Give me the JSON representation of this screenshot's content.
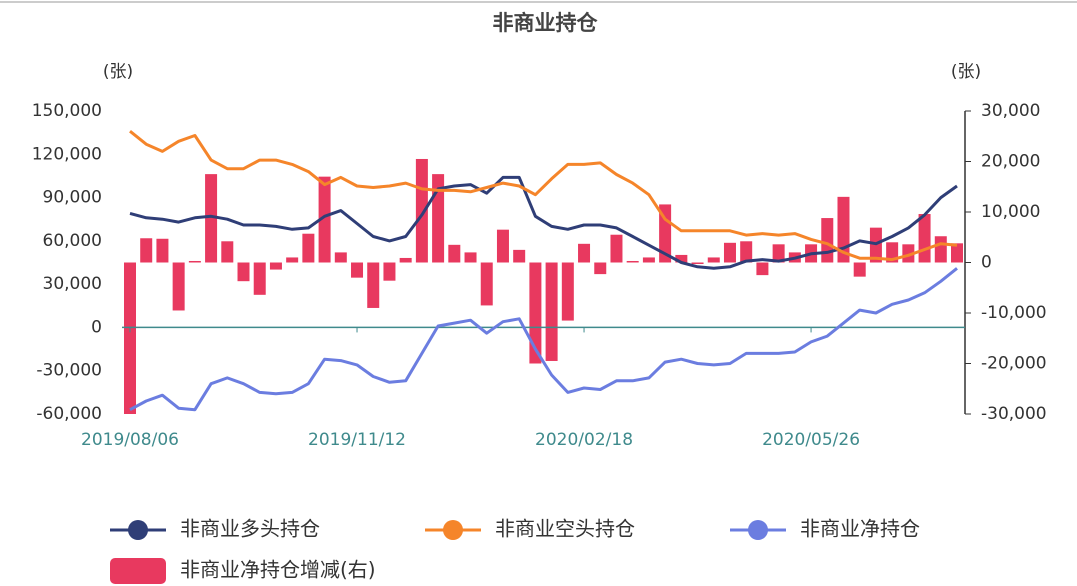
{
  "chart_data": {
    "type": "combo",
    "title": "非商业持仓",
    "y_unit": "(张)",
    "y2_unit": "(张)",
    "categories": [
      "2019/08/06",
      null,
      null,
      null,
      null,
      null,
      null,
      null,
      null,
      null,
      null,
      null,
      null,
      null,
      "2019/11/12",
      null,
      null,
      null,
      null,
      null,
      null,
      null,
      null,
      null,
      null,
      null,
      null,
      null,
      "2020/02/18",
      null,
      null,
      null,
      null,
      null,
      null,
      null,
      null,
      null,
      null,
      null,
      null,
      null,
      "2020/05/26",
      null,
      null,
      null,
      null,
      null,
      null,
      null,
      null,
      null
    ],
    "ylim": [
      -60000,
      150000
    ],
    "yticks": [
      {
        "value": -60000,
        "label": "-60,000"
      },
      {
        "value": -30000,
        "label": "-30,000"
      },
      0,
      {
        "value": 30000,
        "label": "30,000"
      },
      {
        "value": 60000,
        "label": "60,000"
      },
      {
        "value": 90000,
        "label": "90,000"
      },
      {
        "value": 120000,
        "label": "120,000"
      },
      {
        "value": 150000,
        "label": "150,000"
      }
    ],
    "y2lim": [
      -30000,
      30000
    ],
    "y2ticks": [
      {
        "value": -30000,
        "label": "-30,000"
      },
      {
        "value": -20000,
        "label": "-20,000"
      },
      {
        "value": -10000,
        "label": "-10,000"
      },
      0,
      {
        "value": 10000,
        "label": "10,000"
      },
      {
        "value": 20000,
        "label": "20,000"
      },
      {
        "value": 30000,
        "label": "30,000"
      }
    ],
    "legend": "bottom",
    "series": [
      {
        "name": "非商业多头持仓",
        "type": "line",
        "color": "#2f3e77",
        "values": [
          79000,
          76000,
          75000,
          73000,
          76000,
          77000,
          75000,
          71000,
          71000,
          70000,
          68000,
          69000,
          77000,
          81000,
          72000,
          63000,
          60000,
          63000,
          78000,
          96000,
          98000,
          99000,
          93000,
          104000,
          104000,
          77000,
          70000,
          68000,
          71000,
          71000,
          69000,
          63000,
          57000,
          51000,
          45000,
          42000,
          41000,
          42000,
          46000,
          47000,
          46000,
          48000,
          51000,
          52000,
          55000,
          60000,
          58000,
          63000,
          69000,
          78000,
          90000,
          98000
        ]
      },
      {
        "name": "非商业空头持仓",
        "type": "line",
        "color": "#f5852a",
        "values": [
          136000,
          127000,
          122000,
          129000,
          133000,
          116000,
          110000,
          110000,
          116000,
          116000,
          113000,
          108000,
          99000,
          104000,
          98000,
          97000,
          98000,
          100000,
          96000,
          95000,
          95000,
          94000,
          97000,
          100000,
          98000,
          92000,
          103000,
          113000,
          113000,
          114000,
          106000,
          100000,
          92000,
          75000,
          67000,
          67000,
          67000,
          67000,
          64000,
          65000,
          64000,
          65000,
          61000,
          58000,
          52000,
          48000,
          48000,
          47000,
          50000,
          54000,
          58000,
          57000
        ]
      },
      {
        "name": "非商业净持仓",
        "type": "line",
        "color": "#6b7de0",
        "values": [
          -57000,
          -51000,
          -47000,
          -56000,
          -57000,
          -39000,
          -35000,
          -39000,
          -45000,
          -46000,
          -45000,
          -39000,
          -22000,
          -23000,
          -26000,
          -34000,
          -38000,
          -37000,
          -18000,
          1000,
          3000,
          5000,
          -4000,
          4000,
          6000,
          -15000,
          -33000,
          -45000,
          -42000,
          -43000,
          -37000,
          -37000,
          -35000,
          -24000,
          -22000,
          -25000,
          -26000,
          -25000,
          -18000,
          -18000,
          -18000,
          -17000,
          -10000,
          -6000,
          3000,
          12000,
          10000,
          16000,
          19000,
          24000,
          32000,
          41000
        ]
      },
      {
        "name": "非商业净持仓增减(右)",
        "type": "bar",
        "axis": "y2",
        "color": "#e8395f",
        "values": [
          -30000,
          4800,
          4700,
          -9500,
          300,
          17500,
          4200,
          -3700,
          -6400,
          -1400,
          1000,
          5700,
          17000,
          2000,
          -3000,
          -9000,
          -3600,
          900,
          20500,
          17500,
          3500,
          2000,
          -8500,
          6500,
          2500,
          -20000,
          -19500,
          -11500,
          3700,
          -2300,
          5500,
          300,
          1000,
          11500,
          1500,
          -300,
          1000,
          3900,
          4200,
          -2500,
          3600,
          2000,
          3600,
          8800,
          13000,
          -2800,
          6900,
          4000,
          3600,
          9600,
          5200,
          3800
        ]
      }
    ]
  }
}
